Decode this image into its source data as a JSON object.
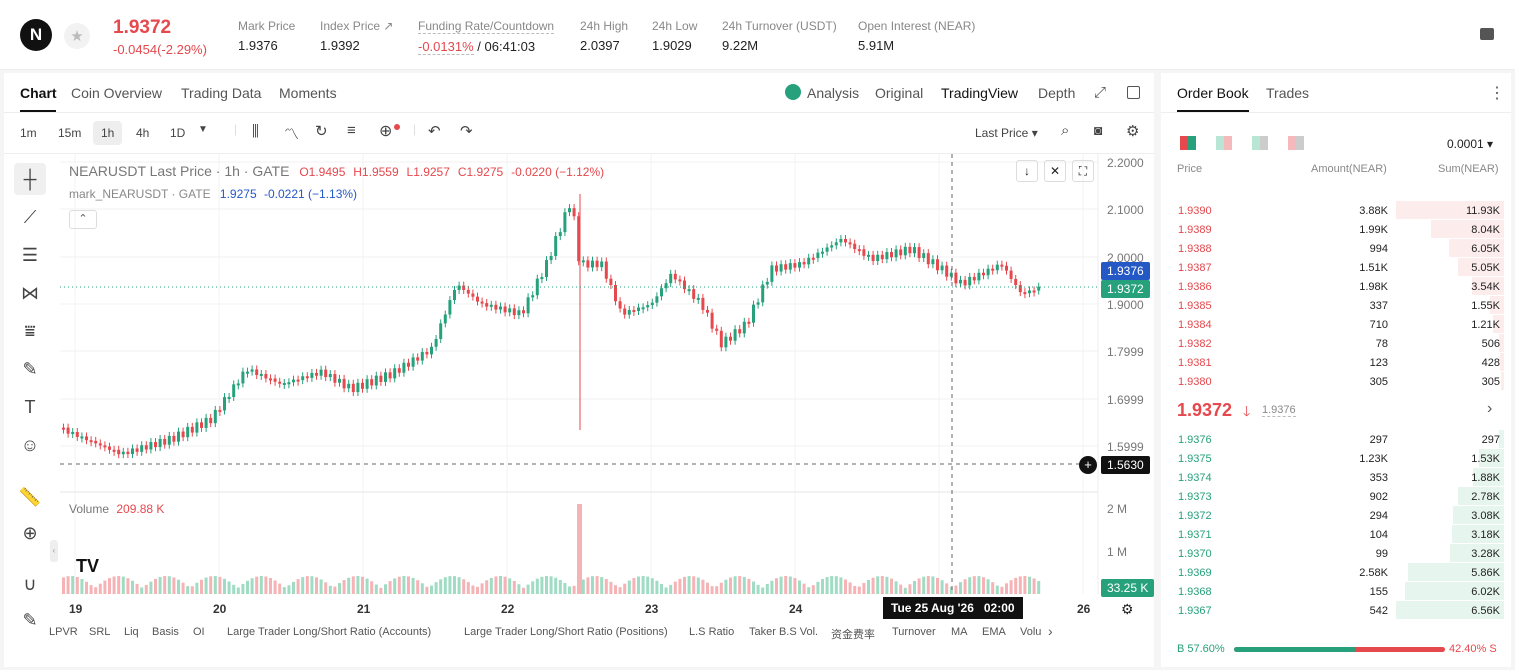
{
  "header": {
    "logo": "N",
    "price": "1.9372",
    "change": "-0.0454(-2.29%)",
    "stats": [
      {
        "label": "Mark Price",
        "value": "1.9376"
      },
      {
        "label": "Index Price ↗",
        "value": "1.9392"
      },
      {
        "label": "Funding Rate/Countdown",
        "value_red": "-0.0131%",
        "value": " / 06:41:03"
      },
      {
        "label": "24h High",
        "value": "2.0397"
      },
      {
        "label": "24h Low",
        "value": "1.9029"
      },
      {
        "label": "24h Turnover (USDT)",
        "value": "9.22M"
      },
      {
        "label": "Open Interest (NEAR)",
        "value": "5.91M"
      }
    ]
  },
  "chart_tabs": [
    "Chart",
    "Coin Overview",
    "Trading Data",
    "Moments"
  ],
  "view_tabs": [
    "Analysis",
    "Original",
    "TradingView",
    "Depth"
  ],
  "intervals": [
    "1m",
    "15m",
    "1h",
    "4h",
    "1D"
  ],
  "last_price_select": "Last Price",
  "legend": {
    "line1_name": "NEARUSDT Last Price · 1h · GATE",
    "o": "O1.9495",
    "h": "H1.9559",
    "l": "L1.9257",
    "c": "C1.9275",
    "chg": "-0.0220 (−1.12%)",
    "line2_name": "mark_NEARUSDT · GATE",
    "mark_val": "1.9275",
    "mark_chg": "-0.0221 (−1.13%)"
  },
  "price_axis": [
    "2.2000",
    "2.1000",
    "2.0000",
    "1.9000",
    "1.7999",
    "1.6999",
    "1.5999"
  ],
  "price_tags": {
    "mark": "1.9376",
    "last": "1.9372",
    "cross": "1.5630",
    "vol": "33.25 K"
  },
  "volume": {
    "label": "Volume",
    "value": "209.88 K",
    "axis": [
      "2 M",
      "1 M"
    ]
  },
  "x_axis": [
    "19",
    "20",
    "21",
    "22",
    "23",
    "24",
    "26"
  ],
  "crosshair_time": "Tue 25 Aug '26   02:00",
  "indicators": [
    "LPVR",
    "SRL",
    "Liq",
    "Basis",
    "OI",
    "Large Trader Long/Short Ratio (Accounts)",
    "Large Trader Long/Short Ratio (Positions)",
    "L.S Ratio",
    "Taker B.S Vol.",
    "资金费率",
    "Turnover",
    "MA",
    "EMA",
    "Volu"
  ],
  "orderbook": {
    "tabs": [
      "Order Book",
      "Trades"
    ],
    "precision": "0.0001",
    "headers": [
      "Price",
      "Amount(NEAR)",
      "Sum(NEAR)"
    ],
    "asks": [
      [
        "1.9390",
        "3.88K",
        "11.93K"
      ],
      [
        "1.9389",
        "1.99K",
        "8.04K"
      ],
      [
        "1.9388",
        "994",
        "6.05K"
      ],
      [
        "1.9387",
        "1.51K",
        "5.05K"
      ],
      [
        "1.9386",
        "1.98K",
        "3.54K"
      ],
      [
        "1.9385",
        "337",
        "1.55K"
      ],
      [
        "1.9384",
        "710",
        "1.21K"
      ],
      [
        "1.9382",
        "78",
        "506"
      ],
      [
        "1.9381",
        "123",
        "428"
      ],
      [
        "1.9380",
        "305",
        "305"
      ]
    ],
    "mid_price": "1.9372",
    "mid_mark": "1.9376",
    "bids": [
      [
        "1.9376",
        "297",
        "297"
      ],
      [
        "1.9375",
        "1.23K",
        "1.53K"
      ],
      [
        "1.9374",
        "353",
        "1.88K"
      ],
      [
        "1.9373",
        "902",
        "2.78K"
      ],
      [
        "1.9372",
        "294",
        "3.08K"
      ],
      [
        "1.9371",
        "104",
        "3.18K"
      ],
      [
        "1.9370",
        "99",
        "3.28K"
      ],
      [
        "1.9369",
        "2.58K",
        "5.86K"
      ],
      [
        "1.9368",
        "155",
        "6.02K"
      ],
      [
        "1.9367",
        "542",
        "6.56K"
      ]
    ],
    "ask_depth": [
      1.0,
      0.674,
      0.507,
      0.423,
      0.297,
      0.13,
      0.101,
      0.042,
      0.036,
      0.026
    ],
    "bid_depth": [
      0.045,
      0.233,
      0.287,
      0.424,
      0.469,
      0.485,
      0.5,
      0.893,
      0.918,
      1.0
    ],
    "buy_ratio": "B 57.60%",
    "sell_ratio": "42.40% S",
    "buy_pct": 57.6
  },
  "colors": {
    "up": "#26a17b",
    "down": "#e5484d"
  }
}
